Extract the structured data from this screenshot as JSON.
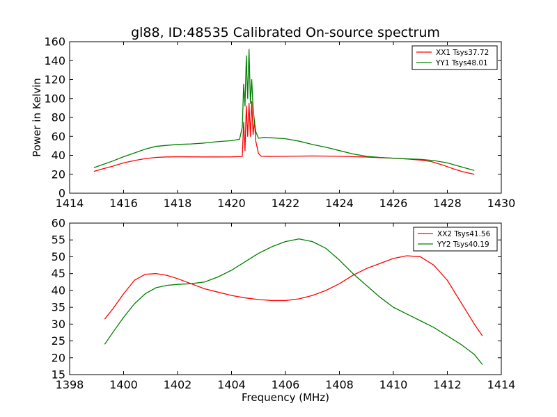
{
  "title": "gl88, ID:48535 Calibrated On-source spectrum",
  "chart_data": [
    {
      "type": "line",
      "title": "gl88, ID:48535 Calibrated On-source spectrum",
      "xlabel": "",
      "ylabel": "Power in Kelvin",
      "xlim": [
        1414,
        1430
      ],
      "ylim": [
        0,
        160
      ],
      "xticks": [
        "1414",
        "1416",
        "1418",
        "1420",
        "1422",
        "1424",
        "1426",
        "1428",
        "1430"
      ],
      "yticks": [
        "0",
        "20",
        "40",
        "60",
        "80",
        "100",
        "120",
        "140",
        "160"
      ],
      "grid": false,
      "legend_position": "top-right",
      "series": [
        {
          "name": "XX1 Tsys37.72",
          "color": "#ff0000",
          "points": [
            [
              1414.9,
              23
            ],
            [
              1415.2,
              25.5
            ],
            [
              1415.6,
              28.5
            ],
            [
              1416,
              32
            ],
            [
              1416.4,
              34.5
            ],
            [
              1416.8,
              36.5
            ],
            [
              1417.2,
              37.8
            ],
            [
              1417.6,
              38.3
            ],
            [
              1418,
              38.5
            ],
            [
              1418.5,
              38.4
            ],
            [
              1419,
              38.3
            ],
            [
              1419.5,
              38.3
            ],
            [
              1420,
              38.4
            ],
            [
              1420.4,
              38.8
            ],
            [
              1420.45,
              75
            ],
            [
              1420.5,
              45
            ],
            [
              1420.55,
              92
            ],
            [
              1420.6,
              60
            ],
            [
              1420.65,
              95
            ],
            [
              1420.7,
              60
            ],
            [
              1420.75,
              97
            ],
            [
              1420.8,
              62
            ],
            [
              1420.85,
              76
            ],
            [
              1420.9,
              55
            ],
            [
              1421,
              42
            ],
            [
              1421.1,
              39
            ],
            [
              1421.5,
              38.8
            ],
            [
              1422,
              39
            ],
            [
              1422.5,
              39.2
            ],
            [
              1423,
              39.3
            ],
            [
              1423.5,
              39.2
            ],
            [
              1424,
              39
            ],
            [
              1424.5,
              38.6
            ],
            [
              1425,
              38.2
            ],
            [
              1425.5,
              37.5
            ],
            [
              1426,
              37
            ],
            [
              1426.5,
              36.2
            ],
            [
              1427,
              35
            ],
            [
              1427.4,
              33.5
            ],
            [
              1427.8,
              30
            ],
            [
              1428.2,
              26
            ],
            [
              1428.6,
              22.5
            ],
            [
              1429,
              20
            ]
          ]
        },
        {
          "name": "YY1 Tsys48.01",
          "color": "#008000",
          "points": [
            [
              1414.9,
              27
            ],
            [
              1415.2,
              30
            ],
            [
              1415.6,
              34
            ],
            [
              1416,
              38.5
            ],
            [
              1416.4,
              42.5
            ],
            [
              1416.8,
              46.5
            ],
            [
              1417.2,
              49.5
            ],
            [
              1417.6,
              50.5
            ],
            [
              1418,
              51.5
            ],
            [
              1418.5,
              52
            ],
            [
              1419,
              53
            ],
            [
              1419.5,
              54.5
            ],
            [
              1420,
              55.5
            ],
            [
              1420.3,
              57
            ],
            [
              1420.4,
              70
            ],
            [
              1420.45,
              115
            ],
            [
              1420.5,
              92
            ],
            [
              1420.55,
              145
            ],
            [
              1420.6,
              100
            ],
            [
              1420.65,
              152
            ],
            [
              1420.7,
              95
            ],
            [
              1420.75,
              120
            ],
            [
              1420.8,
              90
            ],
            [
              1420.85,
              76
            ],
            [
              1420.9,
              65
            ],
            [
              1421,
              58
            ],
            [
              1421.2,
              59
            ],
            [
              1421.5,
              58.5
            ],
            [
              1422,
              57.5
            ],
            [
              1422.5,
              55
            ],
            [
              1423,
              51.5
            ],
            [
              1423.5,
              48.5
            ],
            [
              1424,
              45
            ],
            [
              1424.5,
              41.5
            ],
            [
              1425,
              39
            ],
            [
              1425.5,
              37.8
            ],
            [
              1426,
              37
            ],
            [
              1426.5,
              36.3
            ],
            [
              1427,
              35.8
            ],
            [
              1427.5,
              34.5
            ],
            [
              1428,
              32
            ],
            [
              1428.5,
              28
            ],
            [
              1429,
              24
            ]
          ]
        }
      ]
    },
    {
      "type": "line",
      "title": "",
      "xlabel": "Frequency (MHz)",
      "ylabel": "",
      "xlim": [
        1398,
        1414
      ],
      "ylim": [
        15,
        60
      ],
      "xticks": [
        "1398",
        "1400",
        "1402",
        "1404",
        "1406",
        "1408",
        "1410",
        "1412",
        "1414"
      ],
      "yticks": [
        "15",
        "20",
        "25",
        "30",
        "35",
        "40",
        "45",
        "50",
        "55",
        "60"
      ],
      "grid": false,
      "legend_position": "top-right",
      "series": [
        {
          "name": "XX2 Tsys41.56",
          "color": "#ff0000",
          "points": [
            [
              1399.3,
              31.5
            ],
            [
              1399.6,
              34.5
            ],
            [
              1400,
              39
            ],
            [
              1400.4,
              43
            ],
            [
              1400.8,
              44.8
            ],
            [
              1401.2,
              45
            ],
            [
              1401.6,
              44.5
            ],
            [
              1402,
              43.5
            ],
            [
              1402.5,
              42
            ],
            [
              1403,
              40.5
            ],
            [
              1403.5,
              39.5
            ],
            [
              1404,
              38.5
            ],
            [
              1404.5,
              37.8
            ],
            [
              1405,
              37.3
            ],
            [
              1405.5,
              37
            ],
            [
              1406,
              37
            ],
            [
              1406.5,
              37.5
            ],
            [
              1407,
              38.5
            ],
            [
              1407.5,
              40
            ],
            [
              1408,
              42
            ],
            [
              1408.5,
              44.5
            ],
            [
              1409,
              46.5
            ],
            [
              1409.5,
              48
            ],
            [
              1410,
              49.5
            ],
            [
              1410.5,
              50.3
            ],
            [
              1411,
              50
            ],
            [
              1411.5,
              47.5
            ],
            [
              1412,
              43
            ],
            [
              1412.5,
              36.5
            ],
            [
              1413,
              30
            ],
            [
              1413.3,
              26.5
            ]
          ]
        },
        {
          "name": "YY2 Tsys40.19",
          "color": "#008000",
          "points": [
            [
              1399.3,
              24
            ],
            [
              1399.6,
              27.5
            ],
            [
              1400,
              32
            ],
            [
              1400.4,
              36
            ],
            [
              1400.8,
              39
            ],
            [
              1401.2,
              40.8
            ],
            [
              1401.6,
              41.5
            ],
            [
              1402,
              41.8
            ],
            [
              1402.5,
              42
            ],
            [
              1403,
              42.5
            ],
            [
              1403.5,
              44
            ],
            [
              1404,
              46
            ],
            [
              1404.5,
              48.5
            ],
            [
              1405,
              51
            ],
            [
              1405.5,
              53
            ],
            [
              1406,
              54.5
            ],
            [
              1406.5,
              55.3
            ],
            [
              1407,
              54.5
            ],
            [
              1407.5,
              52.5
            ],
            [
              1408,
              49
            ],
            [
              1408.5,
              45
            ],
            [
              1409,
              41.5
            ],
            [
              1409.5,
              38
            ],
            [
              1410,
              35
            ],
            [
              1410.5,
              33
            ],
            [
              1411,
              31
            ],
            [
              1411.5,
              29
            ],
            [
              1412,
              26.5
            ],
            [
              1412.5,
              24
            ],
            [
              1413,
              21
            ],
            [
              1413.3,
              18
            ]
          ]
        }
      ]
    }
  ]
}
